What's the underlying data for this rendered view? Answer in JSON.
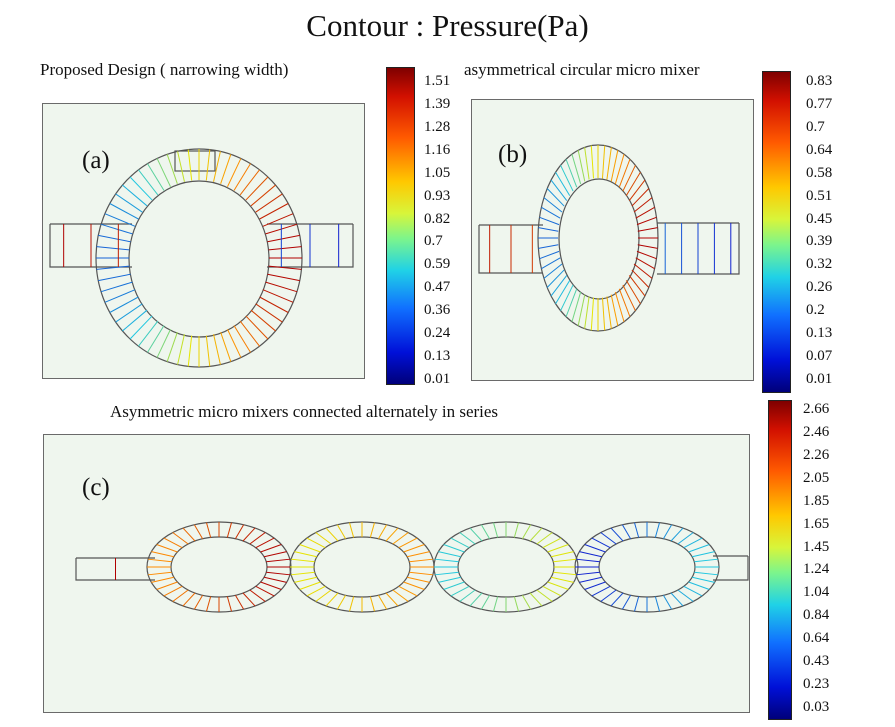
{
  "title": "Contour : Pressure(Pa)",
  "panels": {
    "a": {
      "caption": "Proposed Design ( narrowing width)",
      "letter": "(a)",
      "colorbar_ticks": [
        "1.51",
        "1.39",
        "1.28",
        "1.16",
        "1.05",
        "0.93",
        "0.82",
        "0.7",
        "0.59",
        "0.47",
        "0.36",
        "0.24",
        "0.13",
        "0.01"
      ]
    },
    "b": {
      "caption": "asymmetrical circular micro mixer",
      "letter": "(b)",
      "colorbar_ticks": [
        "0.83",
        "0.77",
        "0.7",
        "0.64",
        "0.58",
        "0.51",
        "0.45",
        "0.39",
        "0.32",
        "0.26",
        "0.2",
        "0.13",
        "0.07",
        "0.01"
      ]
    },
    "c": {
      "caption": "Asymmetric micro mixers connected alternately in series",
      "letter": "(c)",
      "colorbar_ticks": [
        "2.66",
        "2.46",
        "2.26",
        "2.05",
        "1.85",
        "1.65",
        "1.45",
        "1.24",
        "1.04",
        "0.84",
        "0.64",
        "0.43",
        "0.23",
        "0.03"
      ]
    }
  },
  "colors": {
    "high": "#b00000",
    "mid_high": "#ff8c00",
    "mid": "#e6e600",
    "mid_low": "#20c8e0",
    "low": "#1020d0",
    "outline": "#555555"
  }
}
